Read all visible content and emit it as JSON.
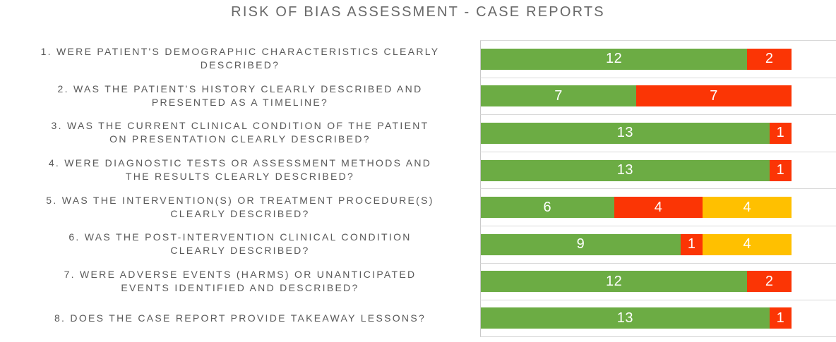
{
  "title": "RISK OF BIAS ASSESSMENT - CASE REPORTS",
  "colors": {
    "green": "#6CAC44",
    "red": "#FB3505",
    "yellow": "#FFC000",
    "gridline": "#D9D9D9",
    "axis_line": "#C9C9C9",
    "label_text": "#595959",
    "title_text": "#686868",
    "bar_value_text": "#FFFFFF"
  },
  "chart_data": {
    "type": "bar",
    "orientation": "horizontal",
    "stacked": true,
    "title": "RISK OF BIAS ASSESSMENT - CASE REPORTS",
    "xlabel": "",
    "ylabel": "",
    "xlim": [
      0,
      16
    ],
    "legend": "none",
    "grid": "horizontal category separators and left axis line only",
    "categories": [
      "1. WERE PATIENT'S DEMOGRAPHIC CHARACTERISTICS CLEARLY\nDESCRIBED?",
      "2. WAS THE PATIENT’S HISTORY CLEARLY DESCRIBED AND\nPRESENTED AS A TIMELINE?",
      "3. WAS THE CURRENT CLINICAL CONDITION OF THE PATIENT\nON PRESENTATION CLEARLY DESCRIBED?",
      "4. WERE DIAGNOSTIC TESTS OR ASSESSMENT METHODS AND\nTHE RESULTS CLEARLY DESCRIBED?",
      "5. WAS THE INTERVENTION(S) OR TREATMENT PROCEDURE(S)\nCLEARLY DESCRIBED?",
      "6. WAS THE POST-INTERVENTION CLINICAL CONDITION\nCLEARLY DESCRIBED?",
      "7. WERE ADVERSE EVENTS (HARMS) OR UNANTICIPATED\nEVENTS IDENTIFIED AND DESCRIBED?",
      "8. DOES THE CASE REPORT PROVIDE TAKEAWAY LESSONS?"
    ],
    "series": [
      {
        "name": "green",
        "color": "#6CAC44",
        "values": [
          12,
          7,
          13,
          13,
          6,
          9,
          12,
          13
        ]
      },
      {
        "name": "red",
        "color": "#FB3505",
        "values": [
          2,
          7,
          1,
          1,
          4,
          1,
          2,
          1
        ]
      },
      {
        "name": "yellow",
        "color": "#FFC000",
        "values": [
          0,
          0,
          0,
          0,
          4,
          4,
          0,
          0
        ]
      }
    ]
  }
}
